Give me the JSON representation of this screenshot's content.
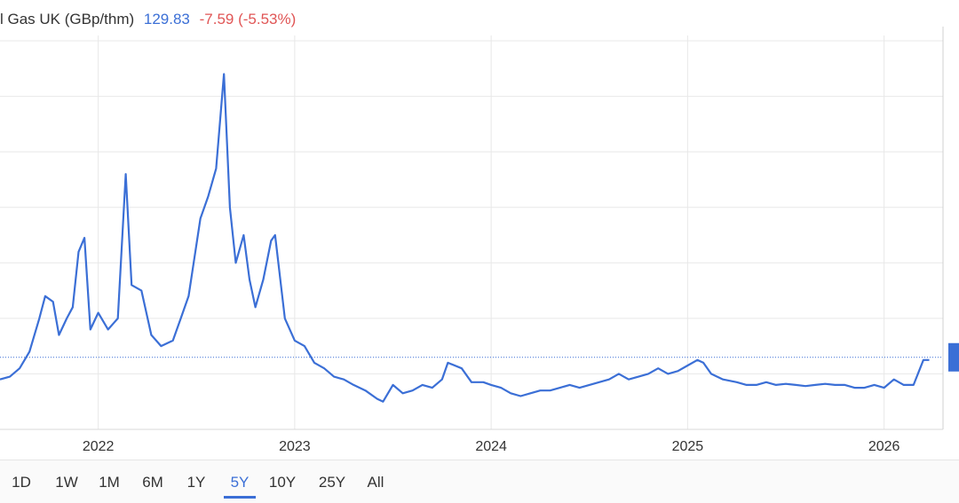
{
  "header": {
    "title": "l Gas UK (GBp/thm)",
    "price": "129.83",
    "change": "-7.59 (-5.53%)"
  },
  "range_buttons": [
    {
      "label": "1D",
      "active": false
    },
    {
      "label": "1W",
      "active": false
    },
    {
      "label": "1M",
      "active": false
    },
    {
      "label": "6M",
      "active": false
    },
    {
      "label": "1Y",
      "active": false
    },
    {
      "label": "5Y",
      "active": true
    },
    {
      "label": "10Y",
      "active": false
    },
    {
      "label": "25Y",
      "active": false
    },
    {
      "label": "All",
      "active": false
    }
  ],
  "colors": {
    "line": "#3b6fd6",
    "change_negative": "#e05555",
    "grid": "#e8e8e8",
    "price_tag": "#3b6fd6"
  },
  "chart_data": {
    "type": "line",
    "title": "",
    "xlabel": "",
    "ylabel": "GBp/thm",
    "x_ticks": [
      "2022",
      "2023",
      "2024",
      "2025",
      "2026"
    ],
    "x_range": [
      2021.5,
      2026.3
    ],
    "ylim": [
      0,
      700
    ],
    "grid": true,
    "last_value": 129.83,
    "series": [
      {
        "name": "",
        "points": [
          [
            2021.5,
            90
          ],
          [
            2021.55,
            95
          ],
          [
            2021.6,
            110
          ],
          [
            2021.65,
            140
          ],
          [
            2021.7,
            200
          ],
          [
            2021.73,
            240
          ],
          [
            2021.77,
            230
          ],
          [
            2021.8,
            170
          ],
          [
            2021.84,
            200
          ],
          [
            2021.87,
            220
          ],
          [
            2021.9,
            320
          ],
          [
            2021.93,
            345
          ],
          [
            2021.96,
            180
          ],
          [
            2022.0,
            210
          ],
          [
            2022.05,
            180
          ],
          [
            2022.1,
            200
          ],
          [
            2022.14,
            460
          ],
          [
            2022.17,
            260
          ],
          [
            2022.22,
            250
          ],
          [
            2022.27,
            170
          ],
          [
            2022.32,
            150
          ],
          [
            2022.38,
            160
          ],
          [
            2022.42,
            200
          ],
          [
            2022.46,
            240
          ],
          [
            2022.52,
            380
          ],
          [
            2022.56,
            420
          ],
          [
            2022.6,
            470
          ],
          [
            2022.64,
            640
          ],
          [
            2022.67,
            400
          ],
          [
            2022.7,
            300
          ],
          [
            2022.74,
            350
          ],
          [
            2022.77,
            270
          ],
          [
            2022.8,
            220
          ],
          [
            2022.84,
            270
          ],
          [
            2022.88,
            340
          ],
          [
            2022.9,
            350
          ],
          [
            2022.95,
            200
          ],
          [
            2023.0,
            160
          ],
          [
            2023.05,
            150
          ],
          [
            2023.1,
            120
          ],
          [
            2023.15,
            110
          ],
          [
            2023.2,
            95
          ],
          [
            2023.25,
            90
          ],
          [
            2023.3,
            80
          ],
          [
            2023.36,
            70
          ],
          [
            2023.42,
            55
          ],
          [
            2023.45,
            50
          ],
          [
            2023.5,
            80
          ],
          [
            2023.55,
            65
          ],
          [
            2023.6,
            70
          ],
          [
            2023.65,
            80
          ],
          [
            2023.7,
            75
          ],
          [
            2023.75,
            90
          ],
          [
            2023.78,
            120
          ],
          [
            2023.85,
            110
          ],
          [
            2023.9,
            85
          ],
          [
            2023.96,
            85
          ],
          [
            2024.0,
            80
          ],
          [
            2024.05,
            75
          ],
          [
            2024.1,
            65
          ],
          [
            2024.15,
            60
          ],
          [
            2024.2,
            65
          ],
          [
            2024.25,
            70
          ],
          [
            2024.3,
            70
          ],
          [
            2024.35,
            75
          ],
          [
            2024.4,
            80
          ],
          [
            2024.45,
            75
          ],
          [
            2024.5,
            80
          ],
          [
            2024.55,
            85
          ],
          [
            2024.6,
            90
          ],
          [
            2024.65,
            100
          ],
          [
            2024.7,
            90
          ],
          [
            2024.75,
            95
          ],
          [
            2024.8,
            100
          ],
          [
            2024.85,
            110
          ],
          [
            2024.9,
            100
          ],
          [
            2024.95,
            105
          ],
          [
            2025.0,
            115
          ],
          [
            2025.05,
            125
          ],
          [
            2025.08,
            120
          ],
          [
            2025.12,
            100
          ],
          [
            2025.18,
            90
          ],
          [
            2025.25,
            85
          ],
          [
            2025.3,
            80
          ],
          [
            2025.35,
            80
          ],
          [
            2025.4,
            85
          ],
          [
            2025.45,
            80
          ],
          [
            2025.5,
            82
          ],
          [
            2025.55,
            80
          ],
          [
            2025.6,
            78
          ],
          [
            2025.65,
            80
          ],
          [
            2025.7,
            82
          ],
          [
            2025.75,
            80
          ],
          [
            2025.8,
            80
          ],
          [
            2025.85,
            75
          ],
          [
            2025.9,
            75
          ],
          [
            2025.95,
            80
          ],
          [
            2026.0,
            75
          ],
          [
            2026.05,
            90
          ],
          [
            2026.1,
            80
          ],
          [
            2026.15,
            80
          ],
          [
            2026.2,
            125
          ],
          [
            2026.23,
            125
          ]
        ]
      }
    ]
  }
}
